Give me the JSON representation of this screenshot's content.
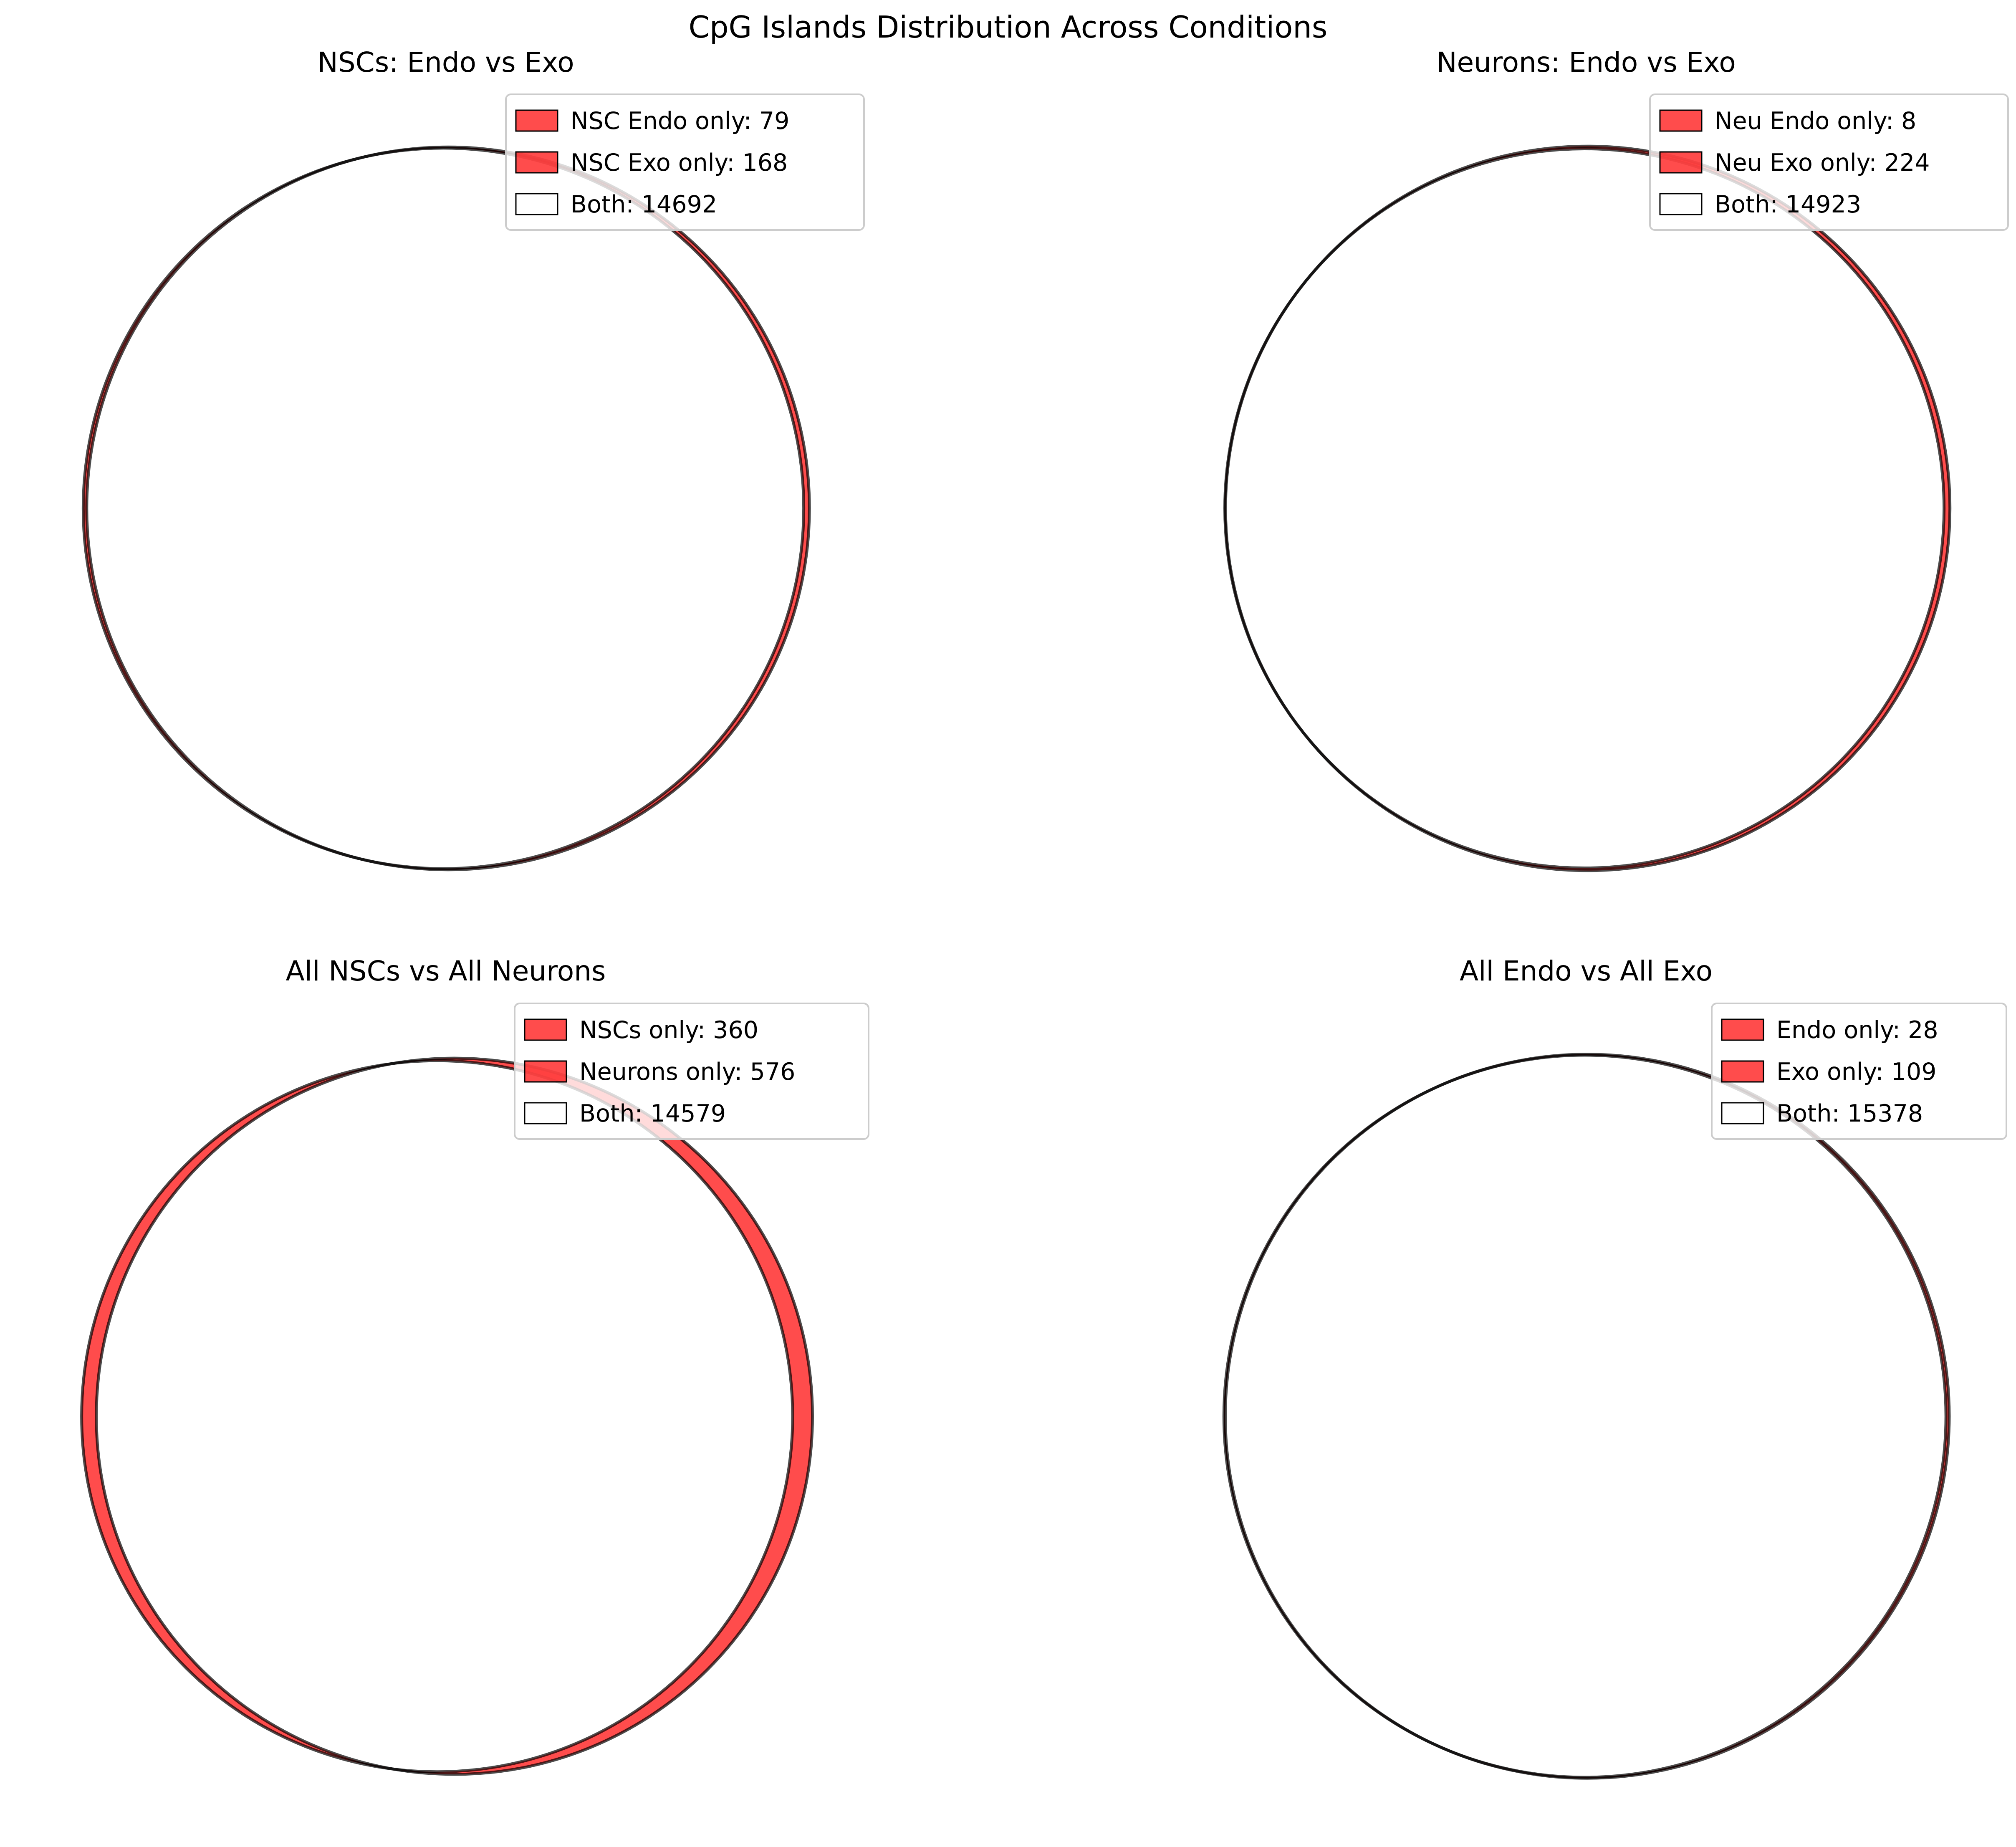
{
  "figure": {
    "title": "CpG Islands Distribution Across Conditions"
  },
  "colors": {
    "unique_fill": "#ff0000",
    "unique_alpha": 0.7,
    "edge": "#000000",
    "legend_frame": "#cccccc",
    "background": "#ffffff"
  },
  "chart_data": [
    {
      "type": "venn2",
      "title": "NSCs: Endo vs Exo",
      "sets": [
        "NSC Endo",
        "NSC Exo"
      ],
      "only_a": 79,
      "only_b": 168,
      "both": 14692,
      "legend": [
        "NSC Endo only: 79",
        "NSC Exo only: 168",
        "Both: 14692"
      ]
    },
    {
      "type": "venn2",
      "title": "Neurons: Endo vs Exo",
      "sets": [
        "Neu Endo",
        "Neu Exo"
      ],
      "only_a": 8,
      "only_b": 224,
      "both": 14923,
      "legend": [
        "Neu Endo only: 8",
        "Neu Exo only: 224",
        "Both: 14923"
      ]
    },
    {
      "type": "venn2",
      "title": "All NSCs vs All Neurons",
      "sets": [
        "NSCs",
        "Neurons"
      ],
      "only_a": 360,
      "only_b": 576,
      "both": 14579,
      "legend": [
        "NSCs only: 360",
        "Neurons only: 576",
        "Both: 14579"
      ]
    },
    {
      "type": "venn2",
      "title": "All Endo vs All Exo",
      "sets": [
        "Endo",
        "Exo"
      ],
      "only_a": 28,
      "only_b": 109,
      "both": 15378,
      "legend": [
        "Endo only: 28",
        "Exo only: 109",
        "Both: 15378"
      ]
    }
  ]
}
